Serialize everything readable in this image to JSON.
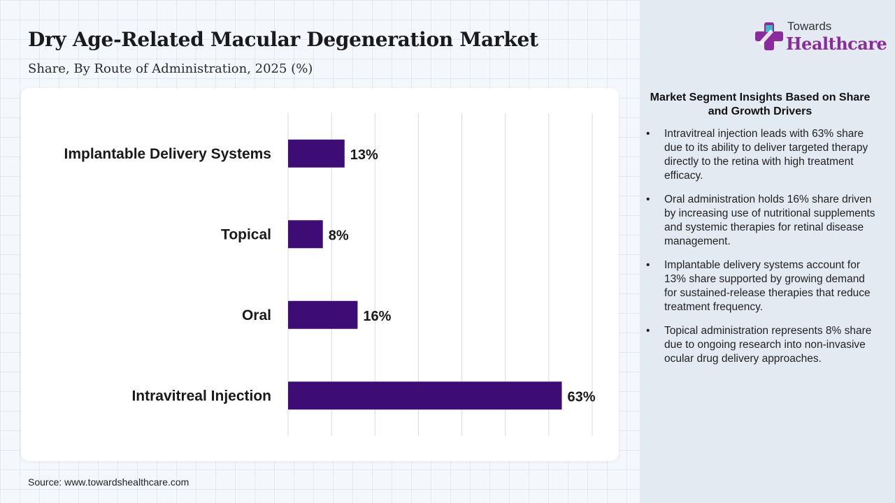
{
  "header": {
    "title": "Dry Age-Related Macular Degeneration Market",
    "subtitle": "Share, By Route of Administration, 2025 (%)"
  },
  "logo": {
    "top": "Towards",
    "main": "Healthcare"
  },
  "chart_data": {
    "type": "bar",
    "orientation": "horizontal",
    "categories": [
      "Implantable Delivery Systems",
      "Topical",
      "Oral",
      "Intravitreal Injection"
    ],
    "values": [
      13,
      8,
      16,
      63
    ],
    "data_labels": [
      "13%",
      "8%",
      "16%",
      "63%"
    ],
    "xlim": [
      0,
      70
    ],
    "grid": true,
    "bar_color": "#3d0d75"
  },
  "insights": {
    "title": "Market Segment Insights Based on Share and Growth Drivers",
    "bullet": "•",
    "items": [
      "Intravitreal injection leads with 63% share due to its ability to deliver targeted therapy directly to the retina with high treatment efficacy.",
      "Oral administration holds 16% share driven by increasing use of nutritional supplements and systemic therapies for retinal disease management.",
      "Implantable delivery systems account for 13% share supported by growing demand for sustained-release therapies that reduce treatment frequency.",
      "Topical administration represents 8% share due to ongoing research into non-invasive ocular drug delivery approaches."
    ]
  },
  "footer": {
    "source": "Source: www.towardshealthcare.com"
  }
}
